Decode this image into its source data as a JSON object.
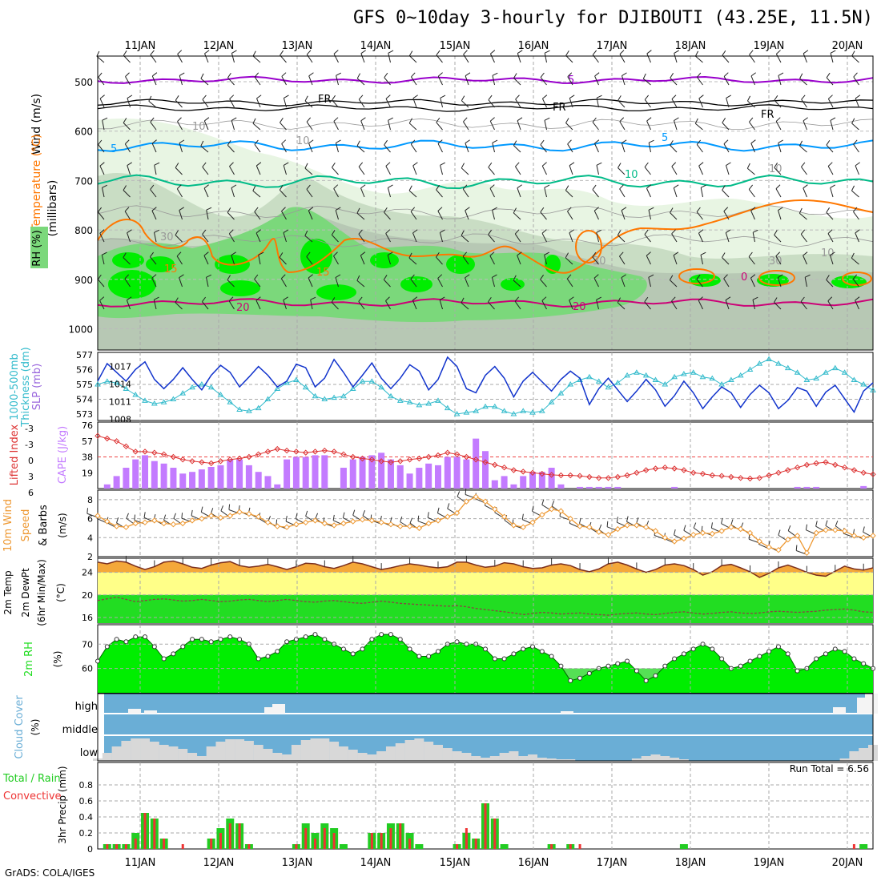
{
  "title": "GFS 0~10day 3-hourly for DJIBOUTI (43.25E, 11.5N)",
  "credit": "GrADS: COLA/IGES",
  "dates": [
    "11JAN",
    "12JAN",
    "13JAN",
    "14JAN",
    "15JAN",
    "16JAN",
    "17JAN",
    "18JAN",
    "19JAN",
    "20JAN"
  ],
  "colors": {
    "rh_light": "#e8f5e3",
    "rh_mid": "#c9ddc4",
    "rh_grey": "#b7c8b4",
    "rh_green": "#7bd87b",
    "rh_bright": "#00ee00",
    "purple": "#9900cc",
    "fr": "#000000",
    "blue5": "#0099ff",
    "teal10": "#00bb88",
    "orange15": "#ff7700",
    "magenta20": "#cc0077",
    "slp": "#1133cc",
    "thickness": "#33bbcc",
    "cape": "#c37bff",
    "lifted": "#dd3333",
    "wind": "#ee9933",
    "temp": "#f4a83a",
    "dewpt_band": "#ffff88",
    "green": "#22dd22",
    "cloud_bg": "#6aaed6",
    "cloud_grey": "#d8d8d8",
    "precip_total": "#22cc22",
    "precip_conv": "#ee3333"
  },
  "panels": {
    "atmos": {
      "ylabels": [
        "Wind (m/s)",
        "Temperature (°C)",
        "(millibars)",
        "RH (%)"
      ],
      "levels": [
        "500",
        "600",
        "700",
        "800",
        "900",
        "1000"
      ],
      "contour_labels": [
        "5",
        "FR",
        "FR",
        "FR",
        "5",
        "5",
        "10",
        "15",
        "15",
        "20",
        "20",
        "0",
        "10",
        "10",
        "30",
        "30",
        "30",
        "10",
        "10"
      ]
    },
    "slp": {
      "ylabel_left": "1000-500mb Thickness (dm)",
      "ylabel_right": "SLP (mb)",
      "left_ticks": [
        "577",
        "576",
        "575",
        "574",
        "573"
      ],
      "right_ticks": [
        "1017",
        "1014",
        "1011",
        "1008"
      ]
    },
    "cape": {
      "ylabel_left": "Lifted Index",
      "ylabel_right": "CAPE (J/kg)",
      "left_ticks": [
        "-3",
        "-3",
        "0",
        "3",
        "6"
      ],
      "right_ticks": [
        "76",
        "57",
        "38",
        "19"
      ]
    },
    "wind": {
      "ylabel": "10m Wind Speed & Barbs",
      "unit": "(m/s)",
      "ticks": [
        "8",
        "6",
        "4",
        "2"
      ]
    },
    "temp": {
      "ylabel": "2m Temp 2m DewPt (6hr Min/Max)",
      "unit": "(°C)",
      "ticks": [
        "24",
        "20",
        "16"
      ]
    },
    "rh": {
      "ylabel": "2m RH",
      "unit": "(%)",
      "ticks": [
        "70",
        "60"
      ]
    },
    "cloud": {
      "ylabel": "Cloud Cover",
      "unit": "(%)",
      "levels": [
        "high",
        "middle",
        "low"
      ]
    },
    "precip": {
      "ylabel_total": "Total / Rain",
      "ylabel_conv": "Convective",
      "unit": "3hr Precip (mm)",
      "ticks": [
        "0.8",
        "0.6",
        "0.4",
        "0.2",
        "0"
      ],
      "run_total": "Run Total = 6.56"
    }
  },
  "chart_data": [
    {
      "type": "line",
      "title": "SLP (mb) and 1000-500mb Thickness (dm)",
      "series": [
        {
          "name": "SLP (mb)",
          "values": [
            1014.5,
            1017.5,
            1016,
            1014.5,
            1016.5,
            1017.8,
            1014.8,
            1013.2,
            1014.8,
            1016.8,
            1014.8,
            1013,
            1015.5,
            1017.2,
            1016,
            1013.5,
            1015.2,
            1017,
            1015.5,
            1013.5,
            1014.5,
            1017.4,
            1016.8,
            1013.5,
            1015,
            1018.2,
            1016,
            1013.5,
            1015.5,
            1017.6,
            1015,
            1013.2,
            1015,
            1017.3,
            1016.2,
            1013,
            1014.8,
            1018.6,
            1017,
            1013.2,
            1012.5,
            1015.5,
            1017,
            1015,
            1011.8,
            1014.5,
            1016,
            1014.4,
            1012.8,
            1014.8,
            1016.2,
            1015,
            1010.5,
            1013.2,
            1015,
            1013,
            1011,
            1012.8,
            1014.8,
            1013,
            1010.2,
            1012,
            1014.5,
            1012.5,
            1009.8,
            1011.8,
            1013.5,
            1012.5,
            1010,
            1012.2,
            1013.8,
            1012.5,
            1009.8,
            1011.2,
            1013.4,
            1012.8,
            1010.2,
            1012.6,
            1013.8,
            1011.5,
            1009.2,
            1012.8,
            1014.2
          ]
        },
        {
          "name": "1000-500mb Thickness (dm)",
          "values": [
            575,
            575.2,
            575.1,
            574.7,
            574.3,
            573.9,
            573.7,
            573.8,
            574,
            574.4,
            574.8,
            575,
            574.8,
            574.3,
            573.8,
            573.3,
            573.2,
            573.4,
            574,
            574.7,
            575.1,
            575.3,
            574.8,
            574.2,
            574,
            574.1,
            574.2,
            574.7,
            575.2,
            575.2,
            574.8,
            574.2,
            573.9,
            573.8,
            573.6,
            573.7,
            573.9,
            573.4,
            573,
            573.1,
            573.2,
            573.5,
            573.5,
            573.2,
            573,
            573.2,
            573.1,
            573.2,
            573.8,
            574.4,
            575,
            575.3,
            575.5,
            575.2,
            574.8,
            575.1,
            575.6,
            575.8,
            575.6,
            575.3,
            575,
            575.5,
            575.7,
            575.8,
            575.5,
            575.4,
            575,
            575.3,
            575.6,
            576,
            576.4,
            576.7,
            576.4,
            576.1,
            575.8,
            575.3,
            575.4,
            575.8,
            576.1,
            575.8,
            575.3,
            575,
            574.6
          ]
        }
      ],
      "ylim_left": [
        573,
        577
      ],
      "ylim_right": [
        1008,
        1019
      ]
    },
    {
      "type": "bar",
      "title": "CAPE (J/kg) and Lifted Index",
      "series": [
        {
          "name": "CAPE (J/kg)",
          "values": [
            0,
            5,
            15,
            25,
            35,
            40,
            33,
            30,
            25,
            18,
            20,
            23,
            26,
            28,
            35,
            35,
            28,
            20,
            15,
            5,
            35,
            38,
            38,
            40,
            40,
            0,
            25,
            35,
            38,
            40,
            43,
            35,
            28,
            18,
            25,
            30,
            28,
            38,
            38,
            35,
            60,
            45,
            10,
            15,
            5,
            15,
            20,
            20,
            25,
            5,
            0,
            2,
            2,
            2,
            2,
            2,
            0,
            0,
            0,
            0,
            0,
            2,
            0,
            0,
            0,
            0,
            0,
            0,
            0,
            0,
            0,
            0,
            0,
            0,
            2,
            2,
            2,
            0,
            0,
            0,
            0,
            3,
            0
          ]
        },
        {
          "name": "Lifted Index",
          "values": [
            -4,
            -3.5,
            -3,
            -2,
            -1,
            -1,
            -0.8,
            -0.5,
            0,
            0.5,
            0.8,
            1,
            1.2,
            0.8,
            0.5,
            0.3,
            0,
            -0.5,
            -1,
            -1.5,
            -1.2,
            -1,
            -0.8,
            -1,
            -1.2,
            -1,
            -0.5,
            0,
            0.3,
            0.5,
            0.8,
            1,
            0.8,
            0.5,
            0.3,
            0,
            -0.3,
            -0.8,
            -0.5,
            0,
            0.5,
            1,
            1.5,
            2,
            2.5,
            2.8,
            3,
            3.2,
            3.4,
            3.5,
            3.5,
            3.6,
            3.8,
            4,
            4,
            3.8,
            3.5,
            3,
            2.5,
            2.2,
            2,
            2.2,
            2.5,
            3,
            3.2,
            3.5,
            3.6,
            3.8,
            4,
            4.1,
            4,
            3.5,
            3,
            2.5,
            2,
            1.5,
            1.2,
            1,
            1.5,
            2,
            2.5,
            3,
            3.3
          ]
        }
      ],
      "ylim_left": [
        -6,
        6
      ],
      "ylim_right": [
        0,
        76
      ]
    },
    {
      "type": "line",
      "title": "10m Wind Speed (m/s)",
      "series": [
        {
          "name": "10m Wind Speed",
          "values": [
            6.3,
            5.7,
            5.2,
            5.1,
            5.5,
            5.6,
            5.8,
            5.5,
            5.4,
            5.5,
            5.8,
            6.0,
            6.3,
            6.1,
            6.3,
            6.7,
            6.5,
            6.2,
            5.6,
            5.2,
            5.1,
            5.4,
            5.6,
            5.8,
            5.5,
            5.3,
            5.5,
            5.7,
            5.9,
            5.8,
            5.6,
            5.4,
            5.2,
            5.2,
            5.0,
            5.5,
            5.8,
            6.2,
            6.6,
            7.8,
            8.3,
            7.8,
            7.0,
            6.2,
            5.3,
            5.1,
            5.6,
            6.4,
            7.0,
            6.8,
            6.0,
            5.2,
            5.1,
            4.6,
            4.3,
            4.9,
            5.3,
            5.3,
            5.1,
            4.7,
            4.0,
            3.6,
            3.9,
            4.3,
            4.5,
            4.4,
            4.7,
            5.1,
            4.9,
            4.5,
            3.6,
            3.0,
            2.7,
            3.8,
            4.2,
            2.4,
            4.5,
            4.8,
            4.8,
            4.7,
            4.2,
            4.0,
            4.2
          ]
        }
      ],
      "ylim": [
        2,
        9
      ]
    },
    {
      "type": "area",
      "title": "2m Temp / 2m DewPt (°C)",
      "series": [
        {
          "name": "2m Temp",
          "values": [
            25.8,
            25.5,
            26.0,
            25.8,
            25.1,
            24.5,
            25.0,
            25.8,
            26.0,
            25.5,
            24.9,
            24.7,
            25.3,
            25.7,
            25.9,
            25.2,
            24.9,
            25.1,
            25.4,
            25.0,
            24.5,
            25.0,
            25.6,
            25.5,
            25.0,
            24.7,
            25.2,
            25.8,
            25.5,
            25.0,
            24.5,
            24.8,
            25.2,
            25.5,
            25.3,
            25.0,
            24.8,
            25.0,
            25.8,
            25.8,
            25.3,
            24.9,
            25.1,
            25.7,
            25.5,
            25.0,
            24.7,
            24.8,
            25.3,
            25.5,
            25.2,
            24.5,
            24.1,
            24.6,
            25.5,
            25.8,
            25.3,
            24.6,
            24.0,
            24.5,
            25.3,
            25.5,
            25.2,
            24.5,
            23.5,
            24.1,
            25.2,
            25.4,
            24.8,
            24.1,
            23.1,
            23.8,
            24.8,
            25.3,
            24.7,
            24.0,
            23.5,
            23.3,
            24.2,
            25.1,
            24.6,
            24.4,
            24.8
          ]
        },
        {
          "name": "2m DewPt",
          "values": [
            19.0,
            19.3,
            19.6,
            19.2,
            18.8,
            19.0,
            19.2,
            19.3,
            19.1,
            18.9,
            19.0,
            19.2,
            19.0,
            18.8,
            18.9,
            19.1,
            19.2,
            19.0,
            18.8,
            19.0,
            19.2,
            19.0,
            18.8,
            18.7,
            18.9,
            19.0,
            18.8,
            18.6,
            18.5,
            18.7,
            18.9,
            18.7,
            18.5,
            18.4,
            18.3,
            18.2,
            18.1,
            18.0,
            18.1,
            17.9,
            17.6,
            17.4,
            17.2,
            17.0,
            16.8,
            16.5,
            16.7,
            16.9,
            16.8,
            16.6,
            16.7,
            16.8,
            16.6,
            16.5,
            16.4,
            16.6,
            16.7,
            16.8,
            16.6,
            16.5,
            16.7,
            16.9,
            17.0,
            16.8,
            16.6,
            16.7,
            16.9,
            17.0,
            16.8,
            16.7,
            16.8,
            17.0,
            17.1,
            17.0,
            16.9,
            17.0,
            17.1,
            17.3,
            17.4,
            17.5,
            17.3,
            17.0,
            16.9
          ]
        }
      ],
      "ylim": [
        15,
        26
      ]
    },
    {
      "type": "area",
      "title": "2m RH (%)",
      "series": [
        {
          "name": "2m RH",
          "values": [
            63,
            69,
            72,
            71,
            73,
            73,
            69,
            64,
            66,
            69,
            72,
            72,
            71,
            72,
            73,
            72,
            70,
            64,
            65,
            67,
            71,
            72,
            73,
            74,
            72,
            70,
            68,
            66,
            68,
            72,
            74,
            74,
            72,
            68,
            65,
            65,
            67,
            70,
            71,
            70,
            70,
            68,
            64,
            64,
            66,
            68,
            69,
            67,
            65,
            61,
            55,
            56,
            58,
            60,
            61,
            62,
            63,
            59,
            55,
            57,
            61,
            64,
            66,
            68,
            70,
            68,
            64,
            60,
            61,
            63,
            65,
            67,
            69,
            66,
            59,
            60,
            64,
            66,
            68,
            67,
            64,
            62,
            60
          ]
        }
      ],
      "ylim": [
        50,
        78
      ]
    },
    {
      "type": "bar",
      "title": "3hr Precip (mm)",
      "series": [
        {
          "name": "Total / Rain",
          "values": [
            0,
            0.06,
            0.06,
            0.06,
            0.2,
            0.45,
            0.38,
            0.13,
            0,
            0,
            0,
            0,
            0.13,
            0.26,
            0.38,
            0.32,
            0.06,
            0,
            0,
            0,
            0,
            0.06,
            0.32,
            0.2,
            0.32,
            0.26,
            0.06,
            0,
            0,
            0.2,
            0.2,
            0.32,
            0.32,
            0.2,
            0.06,
            0,
            0,
            0,
            0.06,
            0.2,
            0.13,
            0.57,
            0.38,
            0.06,
            0,
            0,
            0,
            0,
            0.06,
            0,
            0.06,
            0,
            0,
            0,
            0,
            0,
            0,
            0,
            0,
            0,
            0,
            0,
            0.06,
            0,
            0,
            0,
            0,
            0,
            0,
            0,
            0,
            0,
            0,
            0,
            0,
            0,
            0,
            0,
            0,
            0,
            0,
            0.06,
            0
          ]
        },
        {
          "name": "Convective",
          "values": [
            0,
            0.06,
            0.06,
            0.06,
            0.13,
            0.45,
            0.38,
            0.13,
            0,
            0.06,
            0,
            0,
            0.13,
            0.2,
            0.32,
            0.32,
            0.06,
            0,
            0,
            0,
            0,
            0.06,
            0.26,
            0.13,
            0.26,
            0.2,
            0,
            0,
            0,
            0.2,
            0.2,
            0.26,
            0.32,
            0.13,
            0,
            0,
            0,
            0,
            0.06,
            0.26,
            0.13,
            0.57,
            0.38,
            0,
            0,
            0,
            0,
            0,
            0.06,
            0,
            0.06,
            0.06,
            0,
            0,
            0,
            0,
            0,
            0,
            0,
            0,
            0,
            0,
            0,
            0,
            0,
            0,
            0,
            0,
            0,
            0,
            0,
            0,
            0,
            0,
            0,
            0,
            0,
            0,
            0,
            0,
            0.06,
            0,
            0
          ]
        }
      ],
      "ylim": [
        0,
        1.0
      ]
    }
  ]
}
